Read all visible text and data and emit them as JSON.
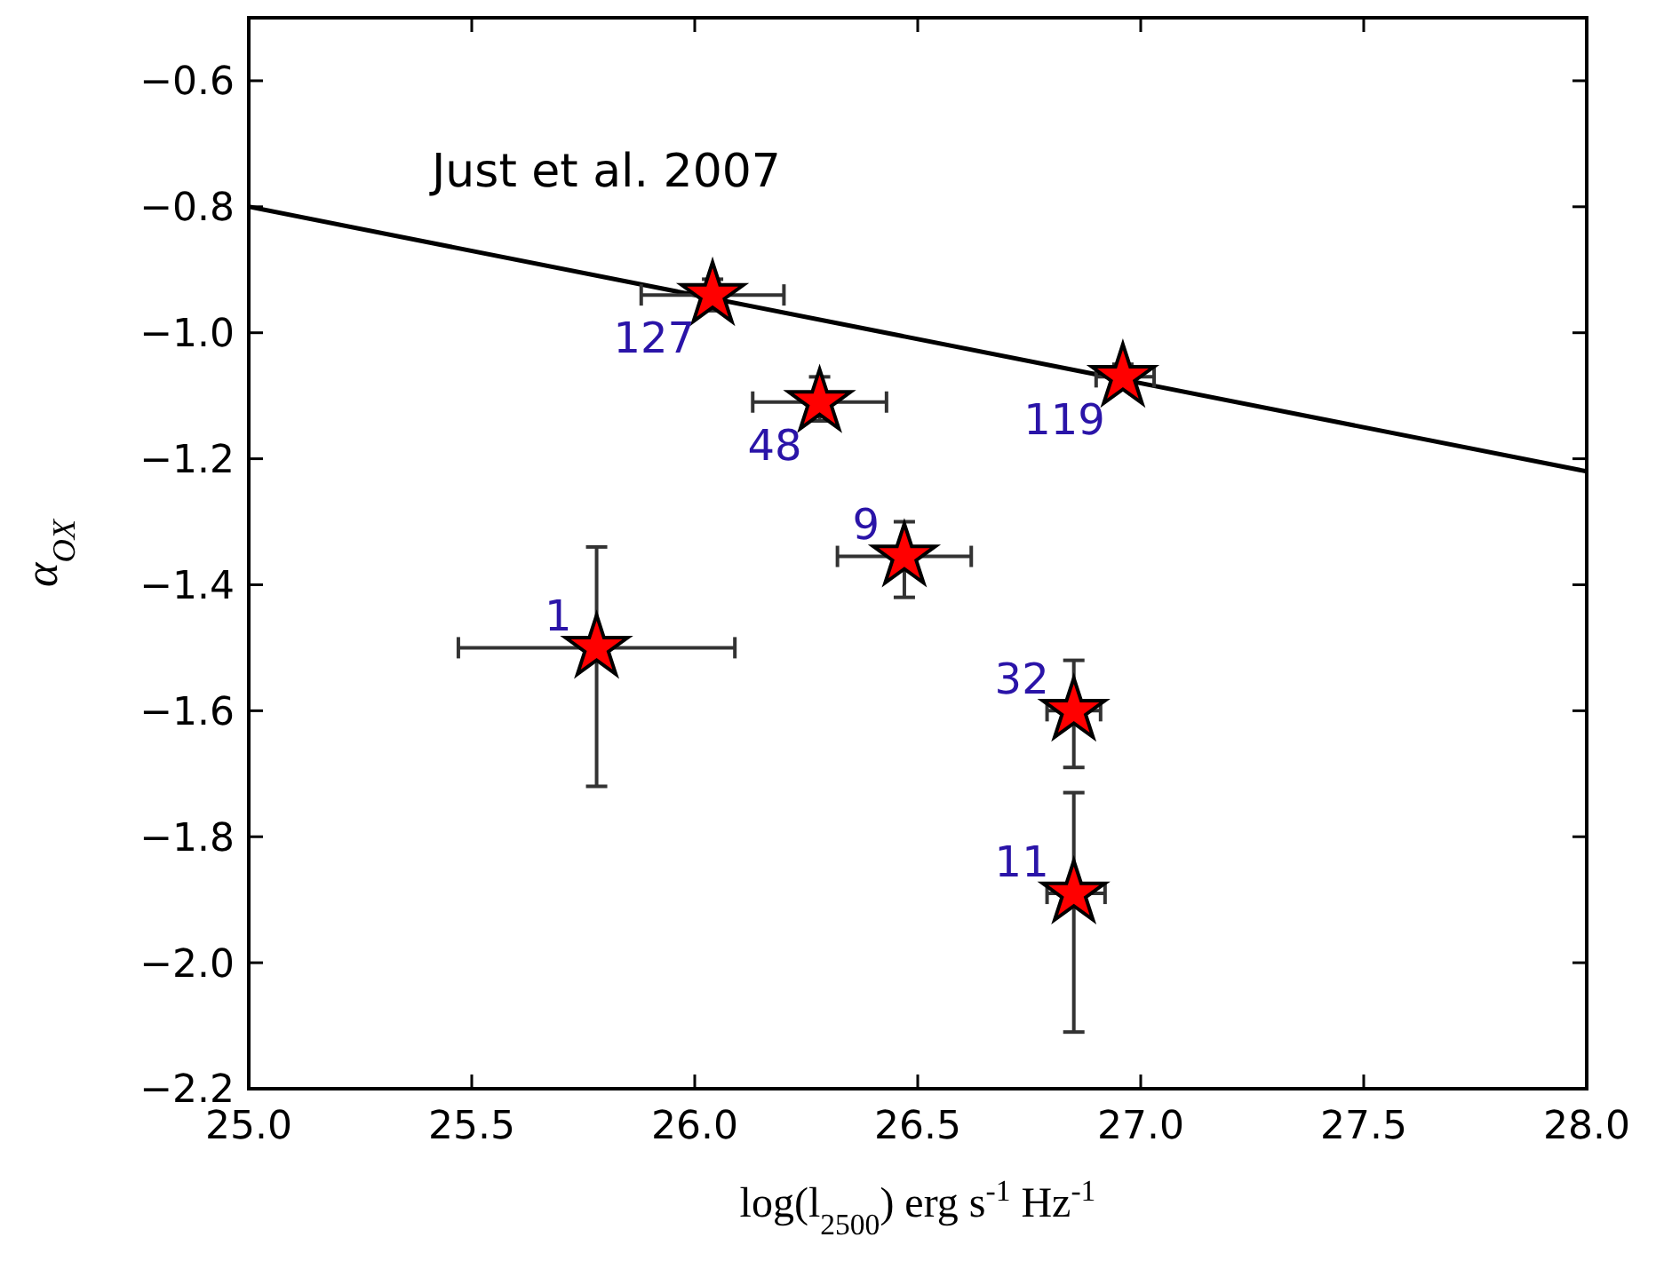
{
  "chart_data": {
    "type": "scatter",
    "xlabel": "log(l$_{2500}$) erg s$^{-1}$ Hz$^{-1}$",
    "ylabel": "α$_{OX}$",
    "xlim": [
      25,
      28
    ],
    "ylim": [
      -2.2,
      -0.5
    ],
    "xticks": [
      {
        "value": 25,
        "label": "25.0"
      },
      {
        "value": 25.5,
        "label": "25.5"
      },
      {
        "value": 26,
        "label": "26.0"
      },
      {
        "value": 26.5,
        "label": "26.5"
      },
      {
        "value": 27,
        "label": "27.0"
      },
      {
        "value": 27.5,
        "label": "27.5"
      },
      {
        "value": 28,
        "label": "28.0"
      }
    ],
    "yticks": [
      {
        "value": -2.2,
        "label": "−2.2"
      },
      {
        "value": -2.0,
        "label": "−2.0"
      },
      {
        "value": -1.8,
        "label": "−1.8"
      },
      {
        "value": -1.6,
        "label": "−1.6"
      },
      {
        "value": -1.4,
        "label": "−1.4"
      },
      {
        "value": -1.2,
        "label": "−1.2"
      },
      {
        "value": -1.0,
        "label": "−1.0"
      },
      {
        "value": -0.8,
        "label": "−0.8"
      },
      {
        "value": -0.6,
        "label": "−0.6"
      }
    ],
    "grid": false,
    "series": [
      {
        "type": "line",
        "color": "#000000",
        "x": [
          25,
          28
        ],
        "values": [
          -0.8,
          -1.22
        ]
      },
      {
        "marker": "star",
        "color": "#ff0000",
        "x": [
          25.78,
          26.04,
          26.28,
          26.47,
          26.96,
          26.85,
          26.85
        ],
        "values": [
          -1.5,
          -0.94,
          -1.11,
          -1.355,
          -1.07,
          -1.6,
          -1.89
        ],
        "errors": [
          [
            -1.72,
            -1.34
          ],
          0.025,
          [
            -1.14,
            -1.07
          ],
          [
            -1.42,
            -1.3
          ],
          0.02,
          [
            -1.69,
            -1.52
          ],
          [
            -2.11,
            -1.73
          ]
        ],
        "xerrors": [
          [
            25.47,
            26.09
          ],
          [
            25.88,
            26.2
          ],
          [
            26.13,
            26.43
          ],
          [
            26.32,
            26.62
          ],
          [
            26.9,
            27.03
          ],
          [
            26.79,
            26.91
          ],
          [
            26.79,
            26.92
          ]
        ]
      }
    ],
    "annotations": [
      "Just et al. 2007",
      {
        "text": "1",
        "x": 25.78,
        "y": -1.5
      },
      {
        "text": "127",
        "x": 26.04,
        "y": -0.94
      },
      {
        "text": "48",
        "x": 26.28,
        "y": -1.11
      },
      {
        "text": "9",
        "x": 26.47,
        "y": -1.355
      },
      {
        "text": "119",
        "x": 26.96,
        "y": -1.07
      },
      {
        "text": "32",
        "x": 26.85,
        "y": -1.6
      },
      {
        "text": "11",
        "x": 26.85,
        "y": -1.89
      }
    ]
  }
}
